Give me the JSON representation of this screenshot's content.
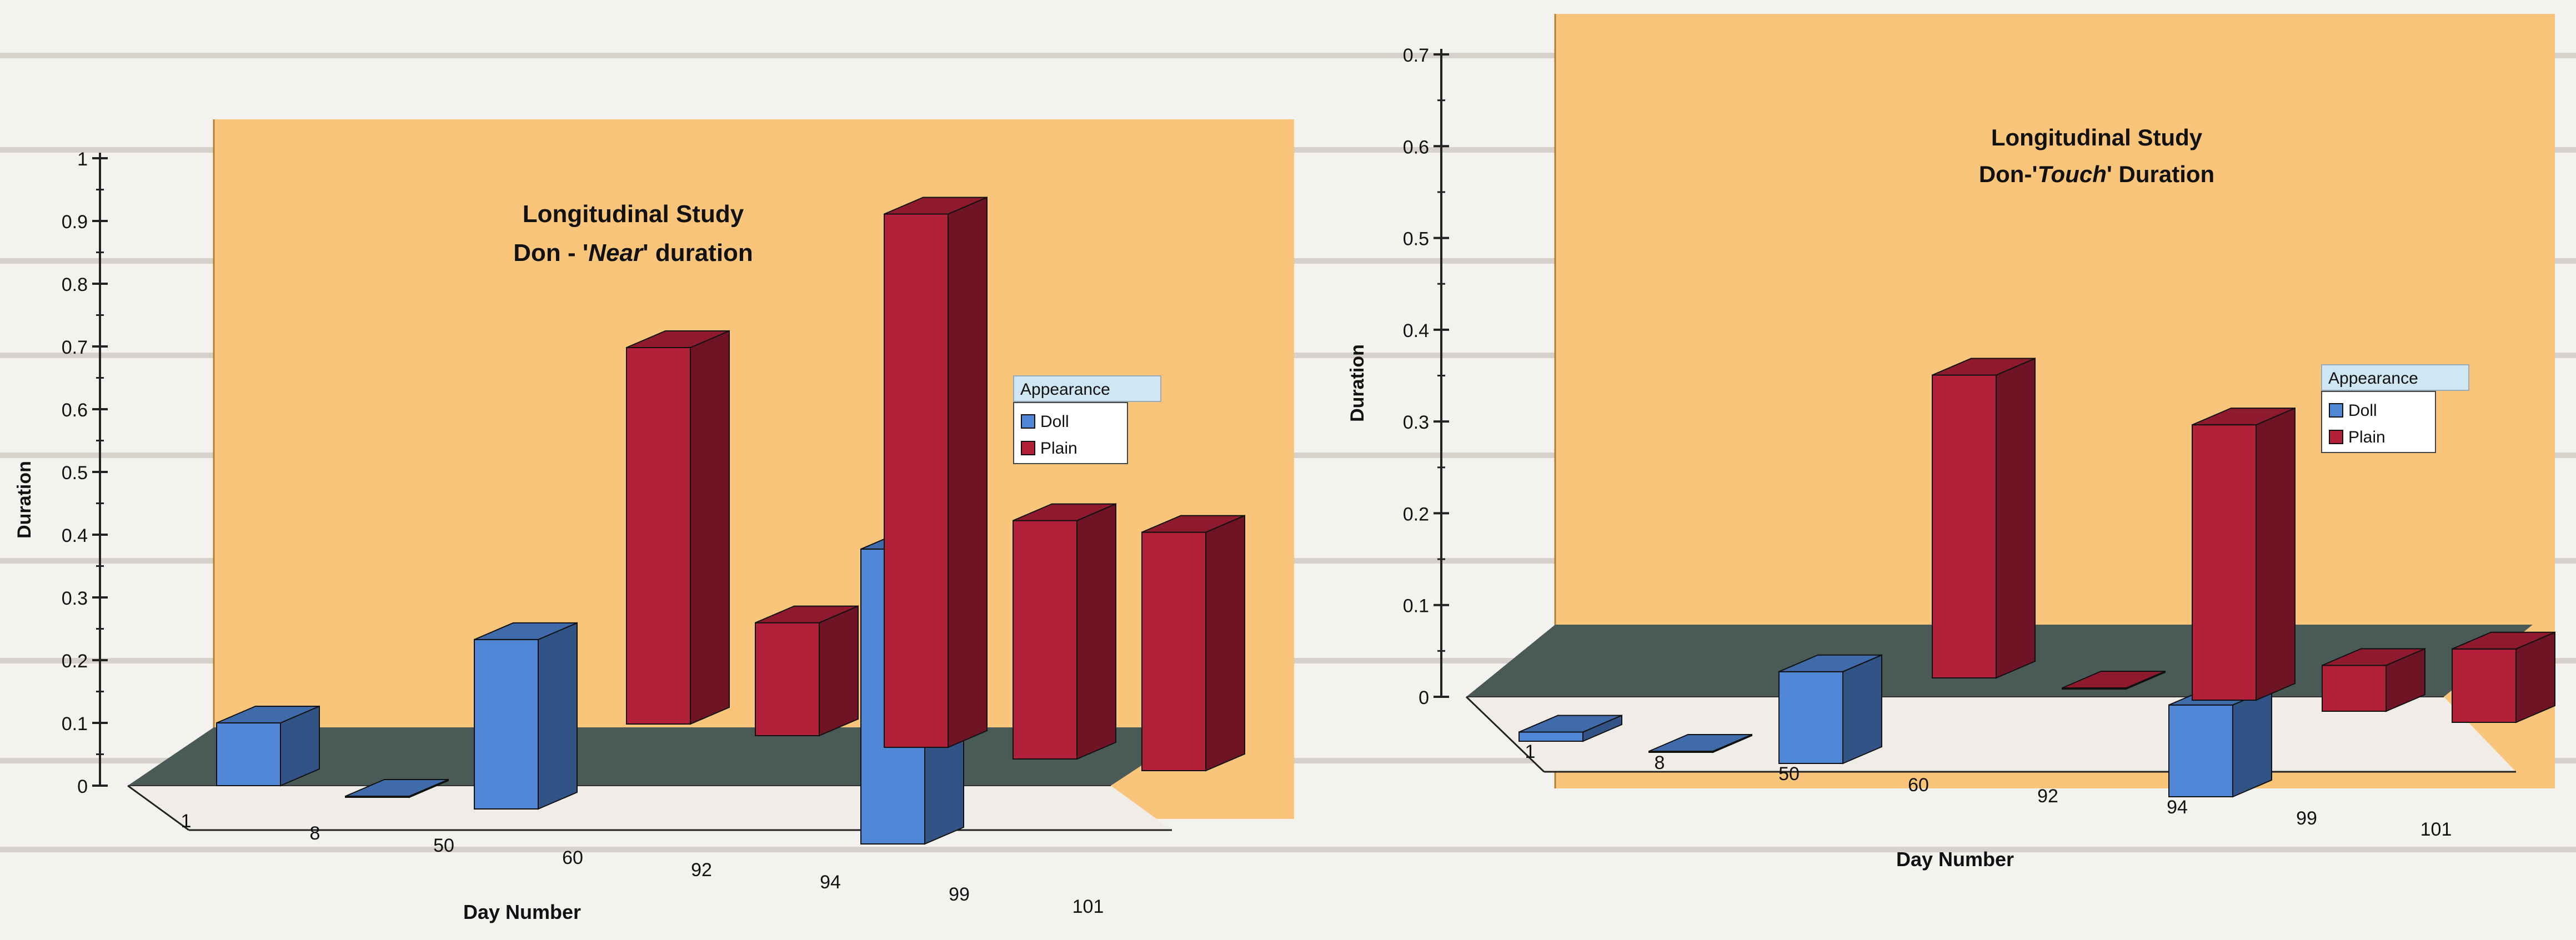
{
  "colors": {
    "wall": "#f9c57a",
    "floor": "#4a5a57",
    "doll": "#4f86d6",
    "plain": "#b3203a"
  },
  "chart_data": [
    {
      "type": "bar",
      "title": "Longitudinal Study",
      "subtitle_prefix": "Don - '",
      "subtitle_emph": "Near",
      "subtitle_suffix": "' duration",
      "xlabel": "Day Number",
      "ylabel": "Duration",
      "categories": [
        "1",
        "8",
        "50",
        "60",
        "92",
        "94",
        "99",
        "101"
      ],
      "series": [
        {
          "name": "Doll",
          "values": [
            0.1,
            0.0,
            0.27,
            null,
            null,
            0.47,
            null,
            null
          ]
        },
        {
          "name": "Plain",
          "values": [
            null,
            null,
            null,
            0.6,
            0.18,
            0.85,
            0.38,
            0.38
          ]
        }
      ],
      "ylim": [
        0,
        1
      ],
      "yticks": [
        "0",
        "0.1",
        "0.2",
        "0.3",
        "0.4",
        "0.5",
        "0.6",
        "0.7",
        "0.8",
        "0.9",
        "1"
      ],
      "legend_title": "Appearance",
      "legend": [
        "Doll",
        "Plain"
      ],
      "legend_position": "right"
    },
    {
      "type": "bar",
      "title": "Longitudinal Study",
      "subtitle_prefix": "Don-'",
      "subtitle_emph": "Touch",
      "subtitle_suffix": "' Duration",
      "xlabel": "Day Number",
      "ylabel": "Duration",
      "categories": [
        "1",
        "8",
        "50",
        "60",
        "92",
        "94",
        "99",
        "101"
      ],
      "series": [
        {
          "name": "Doll",
          "values": [
            0.01,
            0.0,
            0.1,
            null,
            null,
            0.1,
            null,
            null
          ]
        },
        {
          "name": "Plain",
          "values": [
            null,
            null,
            null,
            0.33,
            0.0,
            0.3,
            0.05,
            0.08
          ]
        }
      ],
      "ylim": [
        0,
        0.7
      ],
      "yticks": [
        "0",
        "0.1",
        "0.2",
        "0.3",
        "0.4",
        "0.5",
        "0.6",
        "0.7"
      ],
      "legend_title": "Appearance",
      "legend": [
        "Doll",
        "Plain"
      ],
      "legend_position": "right"
    }
  ]
}
